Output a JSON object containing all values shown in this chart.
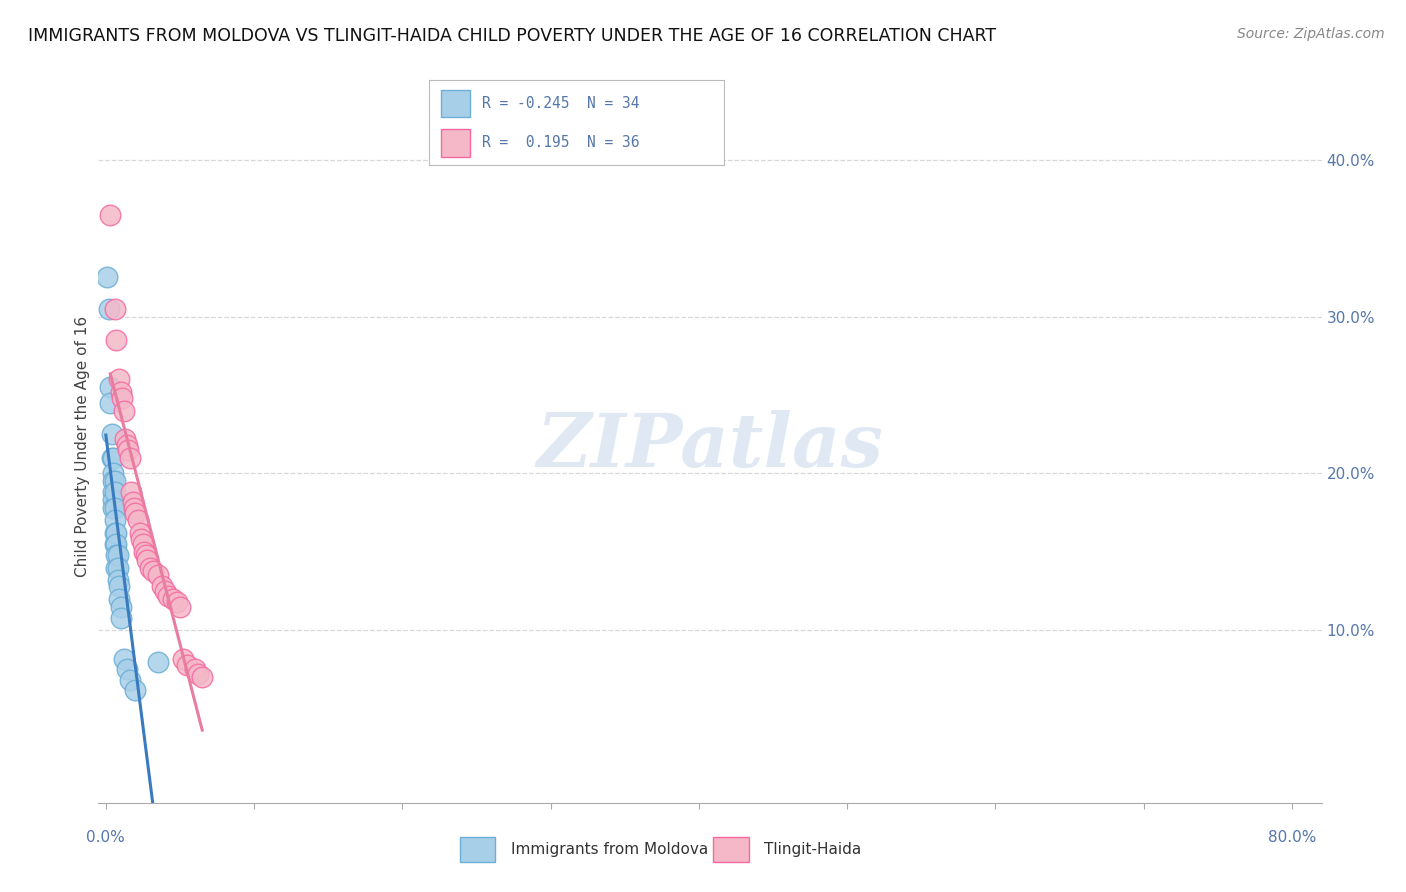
{
  "title": "IMMIGRANTS FROM MOLDOVA VS TLINGIT-HAIDA CHILD POVERTY UNDER THE AGE OF 16 CORRELATION CHART",
  "source": "Source: ZipAtlas.com",
  "ylabel": "Child Poverty Under the Age of 16",
  "watermark": "ZIPatlas",
  "legend_blue_r": "-0.245",
  "legend_blue_n": "34",
  "legend_pink_r": "0.195",
  "legend_pink_n": "36",
  "blue_color": "#a8cfe8",
  "pink_color": "#f4b8c8",
  "blue_edge_color": "#6baed6",
  "pink_edge_color": "#f768a1",
  "blue_line_color": "#3a7bbf",
  "pink_line_color": "#e87da0",
  "tick_color": "#5577aa",
  "blue_scatter": [
    [
      0.001,
      0.325
    ],
    [
      0.002,
      0.305
    ],
    [
      0.003,
      0.255
    ],
    [
      0.003,
      0.245
    ],
    [
      0.004,
      0.225
    ],
    [
      0.004,
      0.21
    ],
    [
      0.005,
      0.21
    ],
    [
      0.005,
      0.2
    ],
    [
      0.005,
      0.195
    ],
    [
      0.005,
      0.188
    ],
    [
      0.005,
      0.183
    ],
    [
      0.005,
      0.178
    ],
    [
      0.006,
      0.195
    ],
    [
      0.006,
      0.188
    ],
    [
      0.006,
      0.178
    ],
    [
      0.006,
      0.17
    ],
    [
      0.006,
      0.162
    ],
    [
      0.006,
      0.155
    ],
    [
      0.007,
      0.162
    ],
    [
      0.007,
      0.155
    ],
    [
      0.007,
      0.148
    ],
    [
      0.007,
      0.14
    ],
    [
      0.008,
      0.148
    ],
    [
      0.008,
      0.14
    ],
    [
      0.008,
      0.132
    ],
    [
      0.009,
      0.128
    ],
    [
      0.009,
      0.12
    ],
    [
      0.01,
      0.115
    ],
    [
      0.01,
      0.108
    ],
    [
      0.012,
      0.082
    ],
    [
      0.014,
      0.075
    ],
    [
      0.016,
      0.068
    ],
    [
      0.02,
      0.062
    ],
    [
      0.035,
      0.08
    ]
  ],
  "pink_scatter": [
    [
      0.003,
      0.365
    ],
    [
      0.006,
      0.305
    ],
    [
      0.007,
      0.285
    ],
    [
      0.009,
      0.26
    ],
    [
      0.01,
      0.252
    ],
    [
      0.011,
      0.248
    ],
    [
      0.012,
      0.24
    ],
    [
      0.013,
      0.222
    ],
    [
      0.014,
      0.218
    ],
    [
      0.015,
      0.215
    ],
    [
      0.016,
      0.21
    ],
    [
      0.017,
      0.188
    ],
    [
      0.018,
      0.182
    ],
    [
      0.019,
      0.178
    ],
    [
      0.02,
      0.175
    ],
    [
      0.022,
      0.17
    ],
    [
      0.023,
      0.162
    ],
    [
      0.024,
      0.158
    ],
    [
      0.025,
      0.155
    ],
    [
      0.026,
      0.15
    ],
    [
      0.027,
      0.148
    ],
    [
      0.028,
      0.145
    ],
    [
      0.03,
      0.14
    ],
    [
      0.032,
      0.138
    ],
    [
      0.035,
      0.135
    ],
    [
      0.038,
      0.128
    ],
    [
      0.04,
      0.125
    ],
    [
      0.042,
      0.122
    ],
    [
      0.045,
      0.12
    ],
    [
      0.048,
      0.118
    ],
    [
      0.05,
      0.115
    ],
    [
      0.052,
      0.082
    ],
    [
      0.055,
      0.078
    ],
    [
      0.06,
      0.075
    ],
    [
      0.062,
      0.072
    ],
    [
      0.065,
      0.07
    ]
  ],
  "xlim": [
    -0.005,
    0.82
  ],
  "ylim": [
    -0.01,
    0.445
  ],
  "background_color": "#ffffff",
  "grid_color": "#d8d8d8",
  "title_fontsize": 12.5,
  "source_fontsize": 10,
  "axis_label_fontsize": 11,
  "tick_fontsize": 11
}
